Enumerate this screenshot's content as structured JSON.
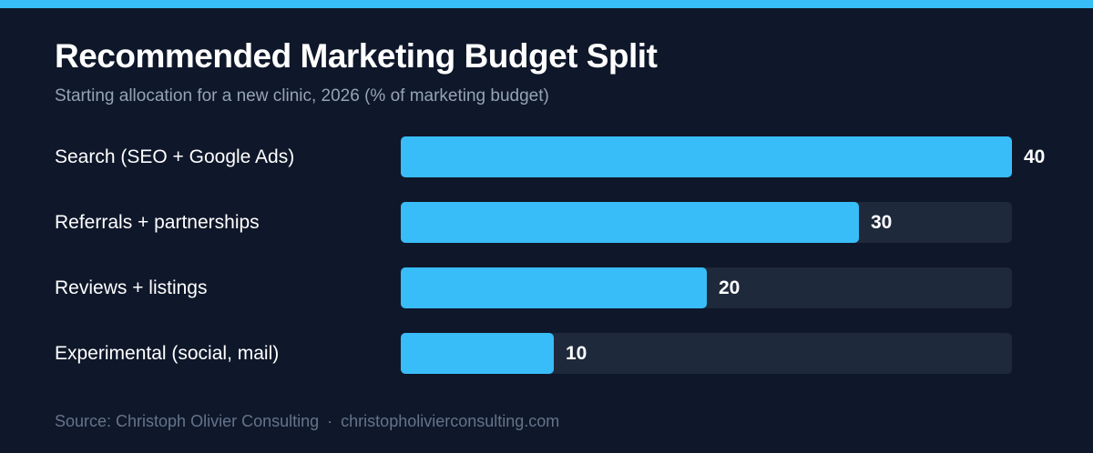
{
  "header": {
    "title": "Recommended Marketing Budget Split",
    "subtitle": "Starting allocation for a new clinic, 2026 (% of marketing budget)"
  },
  "chart_data": {
    "type": "bar",
    "orientation": "horizontal",
    "categories": [
      "Search (SEO + Google Ads)",
      "Referrals + partnerships",
      "Reviews + listings",
      "Experimental (social, mail)"
    ],
    "values": [
      40,
      30,
      20,
      10
    ],
    "value_labels": [
      "40",
      "30",
      "20",
      "10"
    ],
    "xlim": [
      0,
      40
    ],
    "grid": false,
    "legend": "none"
  },
  "footer": {
    "source": "Source: Christoph Olivier Consulting",
    "separator": "·",
    "website": "christopholivierconsulting.com"
  },
  "colors": {
    "background": "#0f172a",
    "accent": "#38bdf8",
    "track": "#1e293b",
    "subtitle": "#94a3b8",
    "source": "#64748b"
  }
}
